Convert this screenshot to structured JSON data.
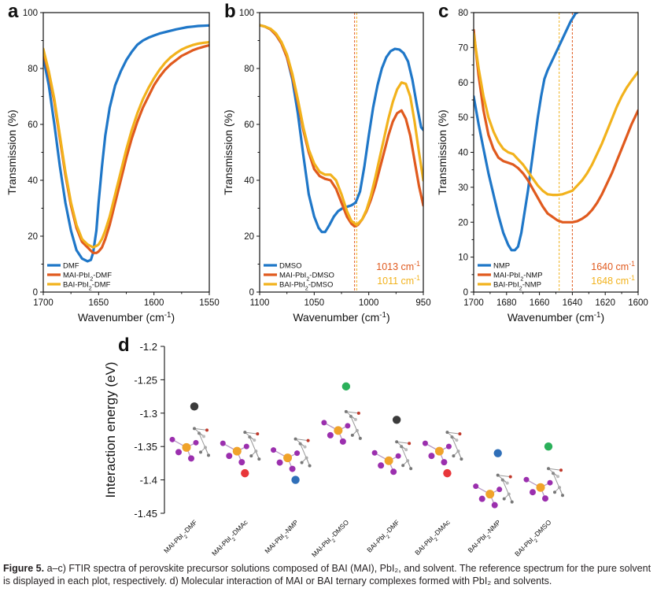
{
  "chart_data": [
    {
      "id": "a",
      "type": "line",
      "letter": "a",
      "xlabel": "Wavenumber (cm⁻¹)",
      "ylabel": "Transmission (%)",
      "xlim": [
        1700,
        1550
      ],
      "ylim": [
        0,
        100
      ],
      "xticks": [
        1700,
        1650,
        1600,
        1550
      ],
      "yticks": [
        0,
        20,
        40,
        60,
        80,
        100
      ],
      "legend_position": "bottom-left",
      "series": [
        {
          "name": "DMF",
          "color": "#1f77c8",
          "x": [
            1700,
            1695,
            1690,
            1685,
            1680,
            1675,
            1670,
            1665,
            1660,
            1657,
            1655,
            1652,
            1650,
            1647,
            1644,
            1640,
            1635,
            1630,
            1625,
            1620,
            1615,
            1610,
            1605,
            1600,
            1595,
            1590,
            1585,
            1580,
            1575,
            1570,
            1565,
            1560,
            1555,
            1550
          ],
          "y": [
            84,
            74,
            60,
            45,
            32,
            22,
            15,
            12,
            11,
            11.5,
            14,
            22,
            32,
            45,
            56,
            66,
            74,
            79,
            83,
            86,
            88.5,
            90,
            91,
            91.8,
            92.5,
            93,
            93.5,
            94,
            94.4,
            94.8,
            95,
            95.2,
            95.3,
            95.4
          ]
        },
        {
          "name": "MAI-PbI₂-DMF",
          "color": "#e05a1e",
          "x": [
            1700,
            1695,
            1690,
            1685,
            1680,
            1675,
            1670,
            1665,
            1660,
            1655,
            1652,
            1650,
            1647,
            1644,
            1640,
            1635,
            1630,
            1625,
            1620,
            1615,
            1610,
            1605,
            1600,
            1595,
            1590,
            1585,
            1580,
            1575,
            1570,
            1565,
            1560,
            1555,
            1550
          ],
          "y": [
            86,
            78,
            68,
            55,
            42,
            31,
            23,
            18,
            16,
            14,
            14,
            14.5,
            16,
            19,
            24,
            32,
            40,
            48,
            55,
            61,
            66,
            70,
            74,
            77,
            79.5,
            81.5,
            83,
            84.5,
            85.5,
            86.5,
            87.2,
            87.8,
            88.3
          ]
        },
        {
          "name": "BAI-PbI₂-DMF",
          "color": "#f2b21c",
          "x": [
            1700,
            1695,
            1690,
            1685,
            1680,
            1675,
            1670,
            1665,
            1660,
            1655,
            1652,
            1650,
            1647,
            1644,
            1640,
            1635,
            1630,
            1625,
            1620,
            1615,
            1610,
            1605,
            1600,
            1595,
            1590,
            1585,
            1580,
            1575,
            1570,
            1565,
            1560,
            1555,
            1550
          ],
          "y": [
            87,
            79,
            69,
            56,
            43,
            32,
            24,
            19,
            17,
            16,
            16.5,
            17,
            19,
            22,
            27,
            35,
            43,
            51,
            58,
            64,
            69,
            73,
            76.5,
            79.5,
            82,
            84,
            85.5,
            86.8,
            87.7,
            88.4,
            88.9,
            89.2,
            89.4
          ]
        }
      ]
    },
    {
      "id": "b",
      "type": "line",
      "letter": "b",
      "xlabel": "Wavenumber (cm⁻¹)",
      "ylabel": "Transmission (%)",
      "xlim": [
        1100,
        950
      ],
      "ylim": [
        0,
        100
      ],
      "xticks": [
        1100,
        1050,
        1000,
        950
      ],
      "yticks": [
        0,
        20,
        40,
        60,
        80,
        100
      ],
      "legend_position": "bottom-left",
      "annotations": [
        {
          "text": "1013 cm⁻¹",
          "color": "#e05a1e"
        },
        {
          "text": "1011 cm⁻¹",
          "color": "#f2b21c"
        }
      ],
      "vlines": [
        {
          "x": 1013,
          "color": "#e05a1e"
        },
        {
          "x": 1011,
          "color": "#f2b21c"
        }
      ],
      "series": [
        {
          "name": "DMSO",
          "color": "#1f77c8",
          "x": [
            1100,
            1095,
            1090,
            1085,
            1080,
            1075,
            1070,
            1065,
            1060,
            1055,
            1050,
            1046,
            1043,
            1040,
            1036,
            1032,
            1028,
            1024,
            1020,
            1016,
            1012,
            1008,
            1004,
            1000,
            996,
            992,
            988,
            984,
            980,
            976,
            972,
            968,
            964,
            960,
            956,
            952,
            950
          ],
          "y": [
            95.5,
            95,
            94,
            92,
            89,
            84,
            76,
            64,
            49,
            35,
            27,
            23,
            21.5,
            21.5,
            24,
            27,
            29,
            30,
            30.5,
            31,
            32,
            36,
            45,
            56,
            66,
            74,
            80,
            84,
            86.2,
            87,
            86.8,
            85.5,
            82.5,
            76,
            67,
            59,
            58
          ]
        },
        {
          "name": "MAI-PbI₂-DMSO",
          "color": "#e05a1e",
          "x": [
            1100,
            1095,
            1090,
            1085,
            1080,
            1075,
            1070,
            1065,
            1060,
            1055,
            1050,
            1045,
            1040,
            1035,
            1030,
            1025,
            1020,
            1016,
            1013,
            1010,
            1006,
            1002,
            998,
            994,
            990,
            986,
            982,
            978,
            974,
            970,
            966,
            962,
            958,
            954,
            950
          ],
          "y": [
            95.5,
            95,
            94,
            92,
            89,
            84,
            77,
            68,
            58,
            50,
            44,
            41.5,
            40.5,
            40,
            37,
            32,
            27,
            24.5,
            23.5,
            24,
            26,
            29,
            33,
            38,
            44,
            50,
            56,
            61,
            64,
            65,
            62,
            56,
            47,
            38,
            31
          ]
        },
        {
          "name": "BAI-PbI₂-DMSO",
          "color": "#f2b21c",
          "x": [
            1100,
            1095,
            1090,
            1085,
            1080,
            1075,
            1070,
            1065,
            1060,
            1055,
            1050,
            1045,
            1040,
            1035,
            1030,
            1025,
            1020,
            1016,
            1011,
            1006,
            1002,
            998,
            994,
            990,
            986,
            982,
            978,
            974,
            970,
            966,
            962,
            958,
            954,
            950
          ],
          "y": [
            95.5,
            95,
            94.2,
            92.5,
            89.5,
            85,
            78,
            69,
            59,
            51,
            46,
            43,
            42,
            42,
            40,
            35,
            29,
            25.5,
            24,
            26,
            29.5,
            34.5,
            41,
            48,
            55,
            62,
            68,
            72.5,
            75,
            74.5,
            70,
            61,
            50,
            40
          ]
        }
      ]
    },
    {
      "id": "c",
      "type": "line",
      "letter": "c",
      "xlabel": "Wavenumber (cm⁻¹)",
      "ylabel": "Transmission (%)",
      "xlim": [
        1700,
        1600
      ],
      "ylim": [
        0,
        80
      ],
      "xticks": [
        1700,
        1680,
        1660,
        1640,
        1620,
        1600
      ],
      "yticks": [
        0,
        10,
        20,
        30,
        40,
        50,
        60,
        70,
        80
      ],
      "legend_position": "bottom-left",
      "annotations": [
        {
          "text": "1640 cm⁻¹",
          "color": "#e05a1e"
        },
        {
          "text": "1648 cm⁻¹",
          "color": "#f2b21c"
        }
      ],
      "vlines": [
        {
          "x": 1640,
          "color": "#e05a1e"
        },
        {
          "x": 1648,
          "color": "#f2b21c"
        }
      ],
      "series": [
        {
          "name": "NMP",
          "color": "#1f77c8",
          "x": [
            1700,
            1697,
            1694,
            1691,
            1688,
            1685,
            1682,
            1679,
            1677,
            1675,
            1673,
            1671,
            1669,
            1667,
            1665,
            1663,
            1661,
            1659,
            1657,
            1655,
            1653,
            1650,
            1647,
            1644,
            1641,
            1638,
            1637
          ],
          "y": [
            56,
            48,
            41,
            34,
            28,
            22,
            17,
            13.5,
            12,
            12,
            13,
            17,
            23,
            29,
            36,
            43,
            50,
            56,
            61,
            63.5,
            65.5,
            68.5,
            71.5,
            74.5,
            77.5,
            79.8,
            80
          ]
        },
        {
          "name": "MAI-PbI₂-NMP",
          "color": "#e05a1e",
          "x": [
            1700,
            1697,
            1694,
            1691,
            1688,
            1685,
            1682,
            1679,
            1676,
            1673,
            1670,
            1667,
            1664,
            1661,
            1658,
            1655,
            1652,
            1649,
            1646,
            1643,
            1640,
            1637,
            1634,
            1631,
            1628,
            1625,
            1622,
            1619,
            1616,
            1613,
            1610,
            1607,
            1604,
            1600
          ],
          "y": [
            75,
            62,
            52,
            45,
            41,
            38.5,
            37.5,
            37,
            36.5,
            35.5,
            34,
            32,
            29.5,
            27,
            24.5,
            22.5,
            21.5,
            20.5,
            20,
            20,
            20,
            20.3,
            21,
            22,
            23.5,
            25.5,
            28,
            31,
            34,
            37.5,
            41,
            44.5,
            48,
            52
          ]
        },
        {
          "name": "BAI-PbI₂-NMP",
          "color": "#f2b21c",
          "x": [
            1700,
            1697,
            1694,
            1691,
            1688,
            1685,
            1682,
            1679,
            1676,
            1673,
            1670,
            1667,
            1664,
            1661,
            1658,
            1655,
            1652,
            1649,
            1646,
            1643,
            1640,
            1637,
            1634,
            1631,
            1628,
            1625,
            1622,
            1619,
            1616,
            1613,
            1610,
            1607,
            1604,
            1600
          ],
          "y": [
            74,
            64,
            56,
            50,
            46,
            43,
            41,
            40,
            39.5,
            38,
            36.5,
            34.5,
            32.5,
            30.5,
            29,
            28,
            27.8,
            27.8,
            28,
            28.5,
            29,
            30.5,
            32,
            34,
            36.5,
            39.5,
            42.5,
            46,
            49.5,
            53,
            56,
            58.5,
            60.5,
            63
          ]
        }
      ]
    },
    {
      "id": "d",
      "type": "scatter",
      "letter": "d",
      "xlabel": "",
      "ylabel": "Interaction energy (eV)",
      "ylim": [
        -1.45,
        -1.2
      ],
      "yticks": [
        "-1.2",
        "-1.25",
        "-1.3",
        "-1.35",
        "-1.4",
        "-1.45"
      ],
      "categories": [
        "MAI-PbI₂-DMF",
        "MAI-PbI₂-DMAc",
        "MAI-PbI₂-NMP",
        "MAI-PbI₂-DMSO",
        "BAI-PbI₂-DMF",
        "BAI-PbI₂-DMAc",
        "BAI-PbI₂-NMP",
        "BAI-PbI₂-DMSO"
      ],
      "values": [
        -1.29,
        -1.39,
        -1.4,
        -1.26,
        -1.31,
        -1.39,
        -1.36,
        -1.35
      ],
      "point_colors": [
        "#3b3b3b",
        "#e8363a",
        "#2f6fb8",
        "#2bb05a",
        "#3b3b3b",
        "#e8363a",
        "#2f6fb8",
        "#2bb05a"
      ]
    }
  ],
  "caption": {
    "label": "Figure 5.",
    "text": "a–c) FTIR spectra of perovskite precursor solutions composed of BAI (MAI), PbI₂, and solvent. The reference spectrum for the pure solvent is displayed in each plot, respectively. d) Molecular interaction of MAI or BAI ternary complexes formed with PbI₂ and solvents."
  }
}
